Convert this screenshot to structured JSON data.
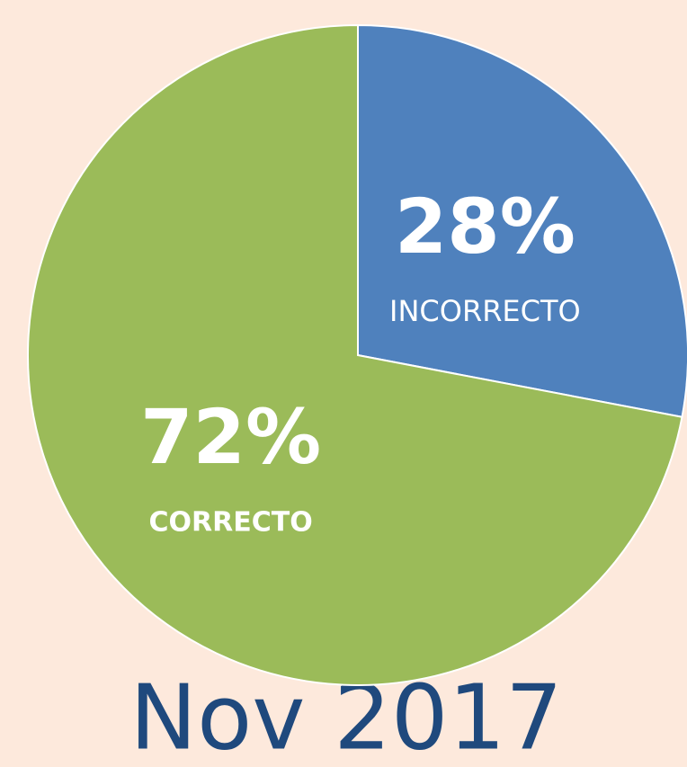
{
  "chart_data": {
    "type": "pie",
    "title": "Nov 2017",
    "categories": [
      "INCORRECTO",
      "CORRECTO"
    ],
    "values": [
      28,
      72
    ],
    "value_labels": [
      "28%",
      "72%"
    ],
    "colors": [
      "#4f81bd",
      "#9bbb59"
    ]
  }
}
